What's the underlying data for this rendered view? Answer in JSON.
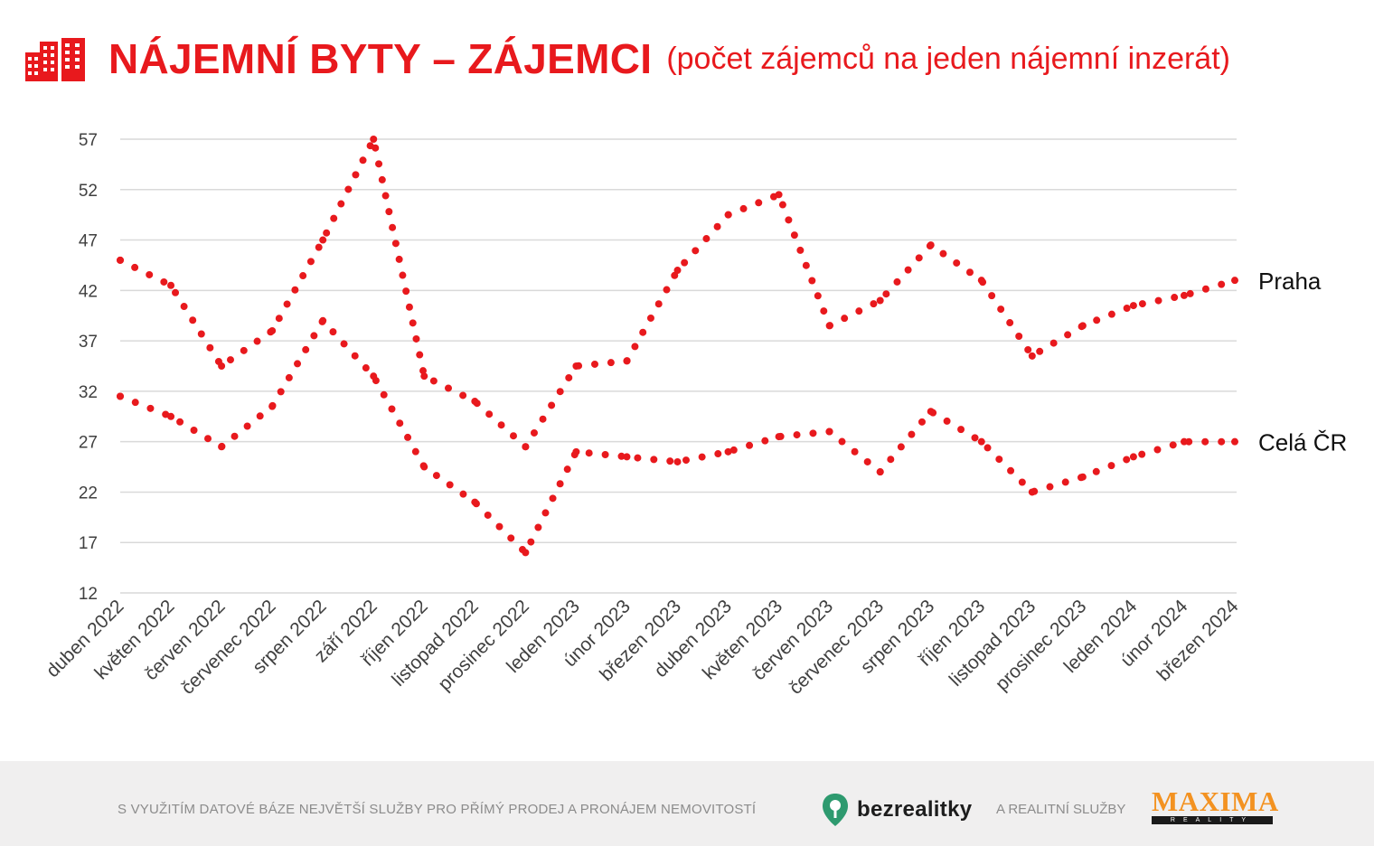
{
  "header": {
    "title": "NÁJEMNÍ BYTY – ZÁJEMCI",
    "subtitle": "(počet zájemců na jeden nájemní inzerát)",
    "icon": "buildings-icon"
  },
  "colors": {
    "accent": "#e8191d",
    "grid": "#d9d9d9",
    "axis_text": "#404040",
    "footer_bg": "#f0efef",
    "maxima_orange": "#f39221",
    "bz_green": "#2e9a6f"
  },
  "chart_data": {
    "type": "line",
    "title": "NÁJEMNÍ BYTY – ZÁJEMCI",
    "subtitle": "(počet zájemců na jeden nájemní inzerát)",
    "xlabel": "",
    "ylabel": "",
    "ylim": [
      12,
      57
    ],
    "yticks": [
      12,
      17,
      22,
      27,
      32,
      37,
      42,
      47,
      52,
      57
    ],
    "grid": true,
    "line_style": "dotted",
    "categories": [
      "duben 2022",
      "květen 2022",
      "červen 2022",
      "červenec 2022",
      "srpen 2022",
      "září 2022",
      "říjen 2022",
      "listopad 2022",
      "prosinec 2022",
      "leden 2023",
      "únor 2023",
      "březen 2023",
      "duben 2023",
      "květen 2023",
      "červen 2023",
      "červenec 2023",
      "srpen 2023",
      "říjen 2023",
      "listopad 2023",
      "prosinec 2023",
      "leden 2024",
      "únor 2024",
      "březen 2024"
    ],
    "series": [
      {
        "name": "Praha",
        "values": [
          45,
          42.5,
          34.5,
          38,
          47,
          57,
          33.5,
          31,
          26.5,
          34.5,
          35,
          44,
          49.5,
          51.5,
          38.5,
          41,
          46.5,
          43,
          35.5,
          38.5,
          40.5,
          41.5,
          43
        ]
      },
      {
        "name": "Celá ČR",
        "values": [
          31.5,
          29.5,
          26.5,
          30.5,
          39,
          33.5,
          24.5,
          21,
          16,
          26,
          25.5,
          25,
          26,
          27.5,
          28,
          24,
          30,
          27,
          22,
          23.5,
          25.5,
          27,
          27
        ]
      }
    ]
  },
  "footer": {
    "text": "S VYUŽITÍM DATOVÉ BÁZE NEJVĚTŠÍ SLUŽBY PRO PŘÍMÝ PRODEJ A PRONÁJEM NEMOVITOSTÍ",
    "brand1": "bezrealitky",
    "connector": "A REALITNÍ SLUŽBY",
    "brand2": "MAXIMA",
    "brand2_sub": "REALITY"
  }
}
